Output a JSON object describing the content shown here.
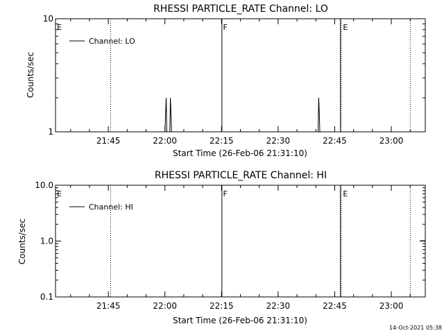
{
  "timestamp": "14-Oct-2021 05:38",
  "chart_data": [
    {
      "type": "line",
      "title": "RHESSI PARTICLE_RATE Channel: LO",
      "xlabel": "Start Time (26-Feb-06 21:31:10)",
      "ylabel": "Counts/sec",
      "yscale": "log",
      "ylim": [
        1,
        10
      ],
      "yticks": [
        "1",
        "10"
      ],
      "xlim_min": [
        0,
        98
      ],
      "xticks": [
        {
          "min": 14,
          "label": "21:45"
        },
        {
          "min": 29,
          "label": "22:00"
        },
        {
          "min": 44,
          "label": "22:15"
        },
        {
          "min": 59,
          "label": "22:30"
        },
        {
          "min": 74,
          "label": "22:45"
        },
        {
          "min": 89,
          "label": "23:00"
        }
      ],
      "legend": "Channel: LO",
      "legend_position": "top-left",
      "color": "#000000",
      "series": [
        {
          "name": "Channel: LO",
          "x": [
            29.0,
            29.2,
            29.35,
            29.5,
            30.3,
            30.45,
            30.6,
            30.75,
            69.6,
            69.75,
            69.9,
            70.05
          ],
          "y": [
            1,
            1.5,
            2,
            1,
            1,
            2,
            1.5,
            1,
            1,
            2,
            1.5,
            1
          ]
        }
      ],
      "vlines": [
        {
          "min": 14.6,
          "style": "dotted"
        },
        {
          "min": 44.1,
          "style": "solid"
        },
        {
          "min": 75.5,
          "style": "solid"
        },
        {
          "min": 75.8,
          "style": "dotted"
        },
        {
          "min": 94.0,
          "style": "dotted"
        }
      ],
      "markers": [
        {
          "min": 0.4,
          "label": "E"
        },
        {
          "min": 44.4,
          "label": "F"
        },
        {
          "min": 76.2,
          "label": "E"
        }
      ]
    },
    {
      "type": "line",
      "title": "RHESSI PARTICLE_RATE Channel: HI",
      "xlabel": "Start Time (26-Feb-06 21:31:10)",
      "ylabel": "Counts/sec",
      "yscale": "log",
      "ylim": [
        0.1,
        10
      ],
      "yticks": [
        "0.1",
        "1.0",
        "10.0"
      ],
      "xlim_min": [
        0,
        98
      ],
      "xticks": [
        {
          "min": 14,
          "label": "21:45"
        },
        {
          "min": 29,
          "label": "22:00"
        },
        {
          "min": 44,
          "label": "22:15"
        },
        {
          "min": 59,
          "label": "22:30"
        },
        {
          "min": 74,
          "label": "22:45"
        },
        {
          "min": 89,
          "label": "23:00"
        }
      ],
      "legend": "Channel: HI",
      "legend_position": "top-left",
      "color": "#000000",
      "series": [
        {
          "name": "Channel: HI",
          "x": [],
          "y": []
        }
      ],
      "vlines": [
        {
          "min": 14.6,
          "style": "dotted"
        },
        {
          "min": 44.1,
          "style": "solid"
        },
        {
          "min": 75.5,
          "style": "solid"
        },
        {
          "min": 75.8,
          "style": "dotted"
        },
        {
          "min": 94.0,
          "style": "dotted"
        }
      ],
      "markers": [
        {
          "min": 0.4,
          "label": "E"
        },
        {
          "min": 44.4,
          "label": "F"
        },
        {
          "min": 76.2,
          "label": "E"
        }
      ]
    }
  ]
}
